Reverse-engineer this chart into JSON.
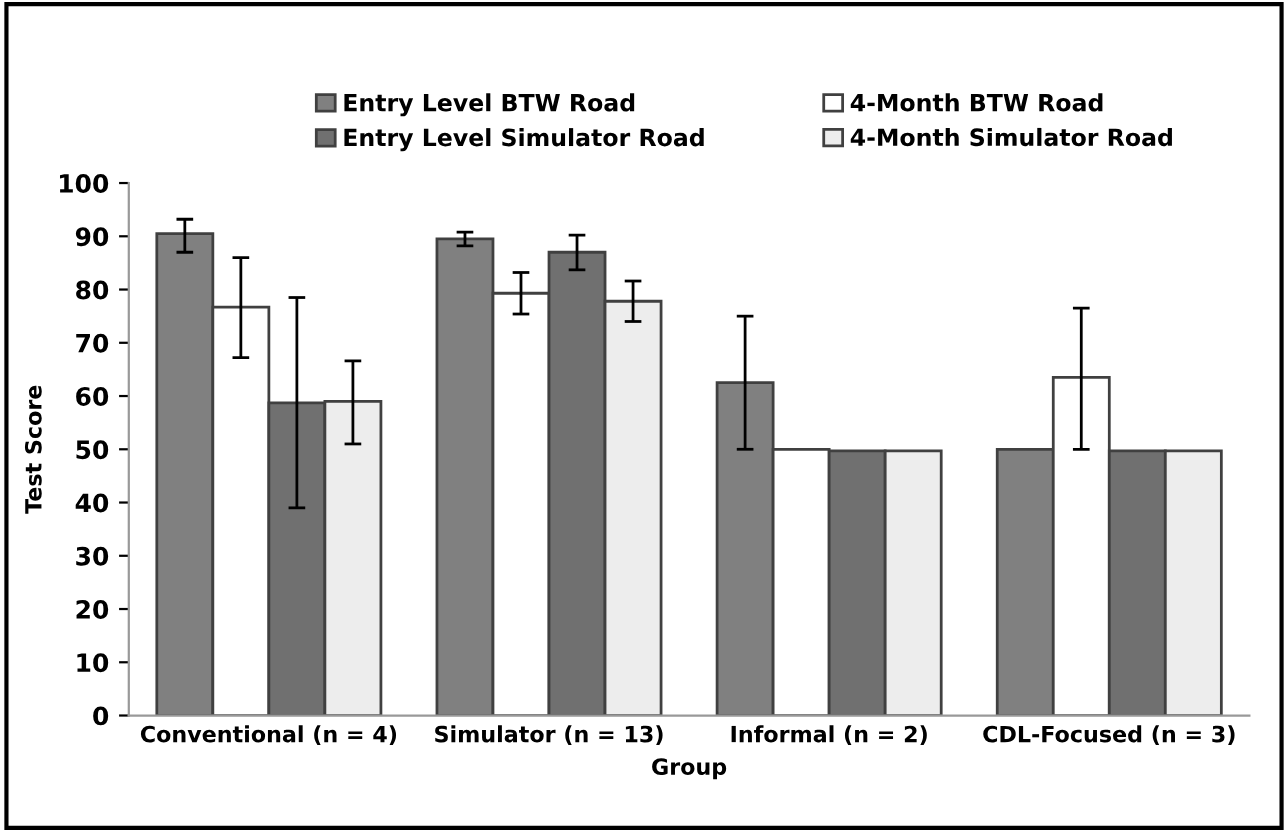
{
  "chart_data": {
    "type": "bar",
    "xlabel": "Group",
    "ylabel": "Test Score",
    "categories": [
      "Conventional (n = 4)",
      "Simulator (n = 13)",
      "Informal (n = 2)",
      "CDL-Focused (n = 3)"
    ],
    "series": [
      {
        "name": "Entry Level BTW Road",
        "color": "#808080",
        "values": [
          90.5,
          89.5,
          62.5,
          50
        ],
        "errors": [
          [
            87,
            93.2
          ],
          [
            88.2,
            90.8
          ],
          [
            50,
            75
          ],
          null
        ]
      },
      {
        "name": "4-Month BTW Road",
        "color": "#ffffff",
        "values": [
          76.7,
          79.3,
          50,
          63.5
        ],
        "errors": [
          [
            67.2,
            86
          ],
          [
            75.4,
            83.2
          ],
          null,
          [
            50,
            76.5
          ]
        ]
      },
      {
        "name": "Entry Level Simulator Road",
        "color": "#707070",
        "values": [
          58.7,
          87,
          49.7,
          49.7
        ],
        "errors": [
          [
            39,
            78.5
          ],
          [
            83.7,
            90.2
          ],
          null,
          null
        ]
      },
      {
        "name": "4-Month Simulator Road",
        "color": "#ededed",
        "values": [
          59,
          77.8,
          49.7,
          49.7
        ],
        "errors": [
          [
            51,
            66.6
          ],
          [
            74,
            81.6
          ],
          null,
          null
        ]
      }
    ],
    "ylim": [
      0,
      100
    ],
    "yticks": [
      0,
      10,
      20,
      30,
      40,
      50,
      60,
      70,
      80,
      90,
      100
    ],
    "legend": "top",
    "grid": false
  }
}
